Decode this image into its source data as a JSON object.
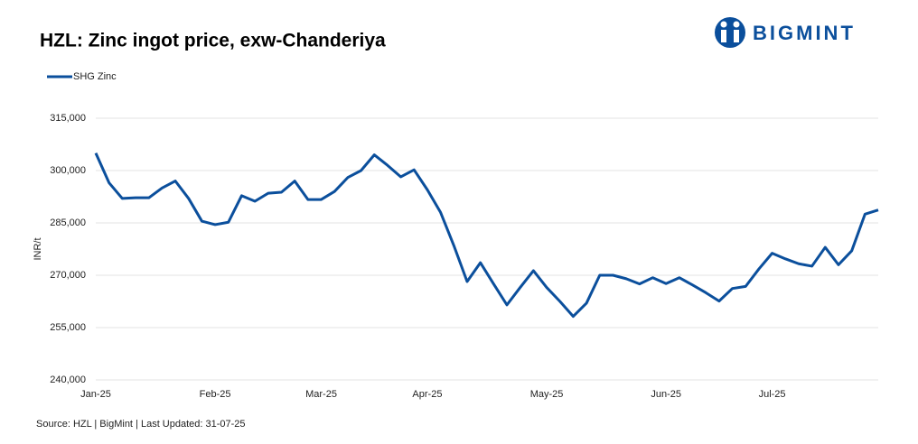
{
  "chart_data": {
    "type": "line",
    "title": "HZL: Zinc ingot price, exw-Chanderiya",
    "logo": "BIGMINT",
    "y_label": "INR/t",
    "source": "Source: HZL | BigMint | Last Updated: 31-07-25",
    "categories": [
      "Jan-25",
      null,
      null,
      null,
      null,
      null,
      null,
      null,
      null,
      "Feb-25",
      null,
      null,
      null,
      null,
      null,
      null,
      null,
      "Mar-25",
      null,
      null,
      null,
      null,
      null,
      null,
      null,
      "Apr-25",
      null,
      null,
      null,
      null,
      null,
      null,
      null,
      null,
      "May-25",
      null,
      null,
      null,
      null,
      null,
      null,
      null,
      null,
      "Jun-25",
      null,
      null,
      null,
      null,
      null,
      null,
      null,
      "Jul-25",
      null,
      null,
      null,
      null,
      null,
      null,
      null,
      null
    ],
    "series": [
      {
        "name": "SHG Zinc",
        "color": "#0b4f9c",
        "values": [
          305000,
          296500,
          292000,
          292200,
          292200,
          295000,
          297000,
          292000,
          285500,
          284500,
          285200,
          292800,
          291200,
          293500,
          293800,
          297000,
          291700,
          291700,
          294000,
          298000,
          300000,
          304500,
          301500,
          298200,
          300200,
          294500,
          288000,
          278500,
          268200,
          273600,
          267500,
          261500,
          266500,
          271300,
          266500,
          262500,
          258200,
          262000,
          270000,
          270000,
          269000,
          267500,
          269300,
          267600,
          269300,
          267200,
          265000,
          262600,
          266200,
          266800,
          271800,
          276300,
          274700,
          273300,
          272600,
          278000,
          273000,
          277000,
          287500,
          288700
        ]
      }
    ],
    "ylim": [
      240000,
      315000
    ],
    "yticks": [
      {
        "value": 240000,
        "label": "240,000"
      },
      {
        "value": 255000,
        "label": "255,000"
      },
      {
        "value": 270000,
        "label": "270,000"
      },
      {
        "value": 285000,
        "label": "285,000"
      },
      {
        "value": 300000,
        "label": "300,000"
      },
      {
        "value": 315000,
        "label": "315,000"
      }
    ],
    "grid": true
  }
}
